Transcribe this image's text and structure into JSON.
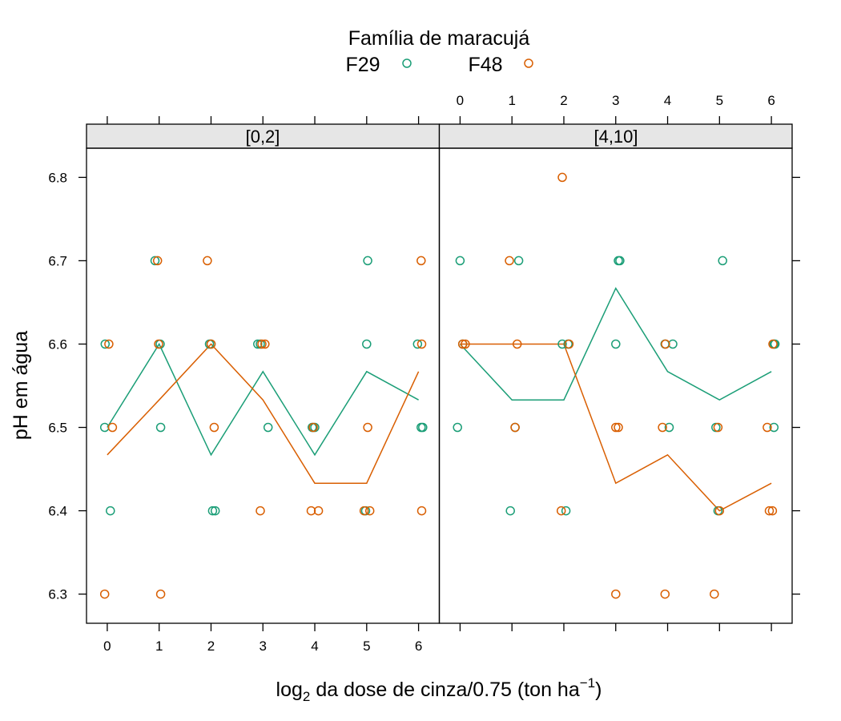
{
  "chart_data": {
    "type": "scatter",
    "legend": {
      "title": "Família de maracujá",
      "entries": [
        {
          "label": "F29",
          "color": "#1b9e77"
        },
        {
          "label": "F48",
          "color": "#d95f02"
        }
      ]
    },
    "xlabel_parts": {
      "pre": "log",
      "sub": "2",
      "mid": " da dose de cinza/0.75 (ton ha",
      "sup": "−1",
      "post": ")"
    },
    "ylabel": "pH em água",
    "xticks": [
      "0",
      "1",
      "2",
      "3",
      "4",
      "5",
      "6"
    ],
    "yticks": [
      "6.3",
      "6.4",
      "6.5",
      "6.6",
      "6.7",
      "6.8"
    ],
    "xlim": [
      -0.4,
      6.4
    ],
    "ylim": [
      6.265,
      6.835
    ],
    "panels": [
      {
        "strip": "[0,2]",
        "points": {
          "F29": [
            [
              -0.05,
              6.5
            ],
            [
              -0.04,
              6.6
            ],
            [
              0.06,
              6.4
            ],
            [
              0.92,
              6.7
            ],
            [
              1.02,
              6.6
            ],
            [
              1.03,
              6.5
            ],
            [
              2.03,
              6.4
            ],
            [
              2.08,
              6.4
            ],
            [
              1.97,
              6.6
            ],
            [
              2.0,
              6.6
            ],
            [
              2.9,
              6.6
            ],
            [
              2.95,
              6.6
            ],
            [
              3.1,
              6.5
            ],
            [
              3.95,
              6.5
            ],
            [
              4.0,
              6.5
            ],
            [
              4.98,
              6.4
            ],
            [
              5.0,
              6.6
            ],
            [
              5.02,
              6.7
            ],
            [
              5.98,
              6.6
            ],
            [
              6.05,
              6.5
            ],
            [
              6.08,
              6.5
            ]
          ],
          "F48": [
            [
              -0.05,
              6.3
            ],
            [
              0.03,
              6.6
            ],
            [
              0.1,
              6.5
            ],
            [
              0.97,
              6.7
            ],
            [
              0.99,
              6.6
            ],
            [
              1.03,
              6.3
            ],
            [
              1.93,
              6.7
            ],
            [
              2.0,
              6.6
            ],
            [
              2.06,
              6.5
            ],
            [
              2.95,
              6.4
            ],
            [
              2.98,
              6.6
            ],
            [
              3.04,
              6.6
            ],
            [
              3.93,
              6.4
            ],
            [
              3.97,
              6.5
            ],
            [
              4.07,
              6.4
            ],
            [
              4.95,
              6.4
            ],
            [
              5.02,
              6.5
            ],
            [
              5.06,
              6.4
            ],
            [
              6.05,
              6.7
            ],
            [
              6.06,
              6.6
            ],
            [
              6.06,
              6.4
            ]
          ]
        },
        "means": {
          "F29": [
            [
              0,
              6.5
            ],
            [
              1,
              6.6
            ],
            [
              2,
              6.467
            ],
            [
              3,
              6.567
            ],
            [
              4,
              6.467
            ],
            [
              5,
              6.567
            ],
            [
              6,
              6.533
            ]
          ],
          "F48": [
            [
              0,
              6.467
            ],
            [
              1,
              6.533
            ],
            [
              2,
              6.6
            ],
            [
              3,
              6.533
            ],
            [
              4,
              6.433
            ],
            [
              5,
              6.433
            ],
            [
              6,
              6.567
            ]
          ]
        }
      },
      {
        "strip": "[4,10]",
        "points": {
          "F29": [
            [
              -0.05,
              6.5
            ],
            [
              0.0,
              6.7
            ],
            [
              0.05,
              6.6
            ],
            [
              0.97,
              6.4
            ],
            [
              1.06,
              6.5
            ],
            [
              1.13,
              6.7
            ],
            [
              1.97,
              6.6
            ],
            [
              2.04,
              6.4
            ],
            [
              2.08,
              6.6
            ],
            [
              3.0,
              6.6
            ],
            [
              3.05,
              6.7
            ],
            [
              3.08,
              6.7
            ],
            [
              3.95,
              6.6
            ],
            [
              4.03,
              6.5
            ],
            [
              4.1,
              6.6
            ],
            [
              4.93,
              6.5
            ],
            [
              4.97,
              6.4
            ],
            [
              5.06,
              6.7
            ],
            [
              6.05,
              6.5
            ],
            [
              6.05,
              6.6
            ],
            [
              6.07,
              6.6
            ]
          ],
          "F48": [
            [
              0.05,
              6.6
            ],
            [
              0.1,
              6.6
            ],
            [
              0.95,
              6.7
            ],
            [
              1.06,
              6.5
            ],
            [
              1.1,
              6.6
            ],
            [
              1.95,
              6.4
            ],
            [
              1.97,
              6.8
            ],
            [
              2.1,
              6.6
            ],
            [
              3.0,
              6.3
            ],
            [
              3.0,
              6.5
            ],
            [
              3.05,
              6.5
            ],
            [
              3.9,
              6.5
            ],
            [
              3.95,
              6.3
            ],
            [
              3.96,
              6.6
            ],
            [
              4.9,
              6.3
            ],
            [
              4.97,
              6.5
            ],
            [
              5.0,
              6.4
            ],
            [
              5.92,
              6.5
            ],
            [
              5.96,
              6.4
            ],
            [
              6.02,
              6.4
            ],
            [
              6.03,
              6.6
            ]
          ]
        },
        "means": {
          "F29": [
            [
              0,
              6.6
            ],
            [
              1,
              6.533
            ],
            [
              2,
              6.533
            ],
            [
              3,
              6.667
            ],
            [
              4,
              6.567
            ],
            [
              5,
              6.533
            ],
            [
              6,
              6.567
            ]
          ],
          "F48": [
            [
              0,
              6.6
            ],
            [
              1,
              6.6
            ],
            [
              2,
              6.6
            ],
            [
              3,
              6.433
            ],
            [
              4,
              6.467
            ],
            [
              5,
              6.4
            ],
            [
              6,
              6.433
            ]
          ]
        }
      }
    ]
  }
}
